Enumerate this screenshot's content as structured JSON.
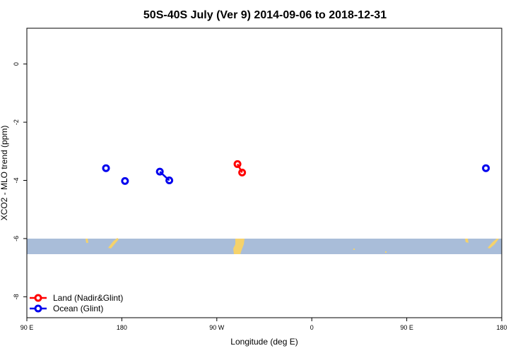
{
  "chart_data": {
    "type": "line",
    "title": "50S-40S July (Ver 9)   2014-09-06 to 2018-12-31",
    "xlabel": "Longitude (deg E)",
    "ylabel": "XCO2 - MLO trend (ppm)",
    "xlim": [
      90,
      540
    ],
    "ylim": [
      -8.72,
      1.23
    ],
    "xticks": [
      {
        "value": 90,
        "label": "90 E"
      },
      180,
      {
        "value": 270,
        "label": "90 W"
      },
      {
        "value": 360,
        "label": "0"
      },
      {
        "value": 450,
        "label": "90 E"
      },
      {
        "value": 540,
        "label": "180"
      }
    ],
    "yticks": [
      0,
      -2,
      -4,
      -6,
      -8
    ],
    "legend": "bottom-left",
    "series": [
      {
        "name": "Land (Nadir&Glint)",
        "color": "#ff0000",
        "x": [
          289.6,
          294
        ],
        "values": [
          -3.44,
          -3.73
        ]
      },
      {
        "name": "Ocean (Glint)",
        "color": "#0000ee",
        "x": [
          165,
          null,
          183,
          null,
          216,
          225,
          null,
          525
        ],
        "values": [
          -3.58,
          null,
          -4.02,
          null,
          -3.7,
          -4.0,
          null,
          -3.58
        ]
      }
    ]
  }
}
